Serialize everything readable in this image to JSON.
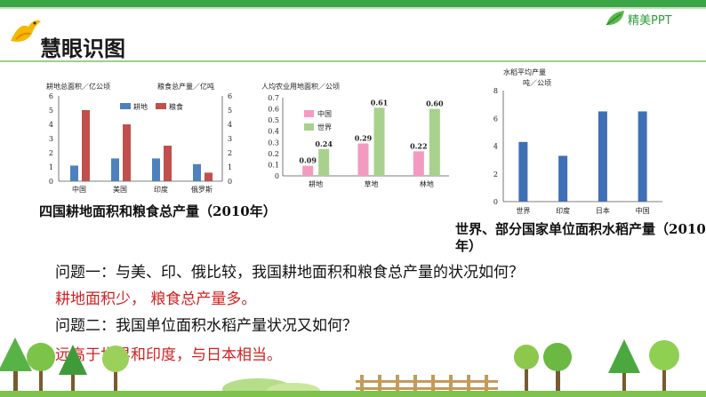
{
  "slide": {
    "title": "慧眼识图",
    "brand": "精美PPT"
  },
  "charts": {
    "chart1": {
      "type": "bar",
      "ylabel_left": "耕地总面积／亿公顷",
      "ylabel_right": "粮食总产量／亿吨",
      "categories": [
        "中国",
        "美国",
        "印度",
        "俄罗斯"
      ],
      "yticks": [
        "0",
        "1",
        "2",
        "3",
        "4",
        "5",
        "6"
      ],
      "ylim": [
        0,
        6
      ],
      "series": [
        {
          "name": "耕地",
          "color": "#4f81bd",
          "values": [
            1.1,
            1.6,
            1.6,
            1.2
          ]
        },
        {
          "name": "粮食",
          "color": "#c0504d",
          "values": [
            5.0,
            4.0,
            2.5,
            0.6
          ]
        }
      ],
      "caption": "四国耕地面积和粮食总产量（2010年）"
    },
    "chart2": {
      "type": "bar",
      "ylabel": "人均农业用地面积／公顷",
      "categories": [
        "耕地",
        "草地",
        "林地"
      ],
      "yticks": [
        "0",
        "0.1",
        "0.2",
        "0.3",
        "0.4",
        "0.5",
        "0.6",
        "0.7"
      ],
      "ylim": [
        0,
        0.7
      ],
      "series": [
        {
          "name": "中国",
          "color": "#f49ac1",
          "values": [
            0.09,
            0.29,
            0.22
          ],
          "labels": [
            "0.09",
            "0.29",
            "0.22"
          ]
        },
        {
          "name": "世界",
          "color": "#a9d18e",
          "values": [
            0.24,
            0.61,
            0.6
          ],
          "labels": [
            "0.24",
            "0.61",
            "0.60"
          ]
        }
      ]
    },
    "chart3": {
      "type": "bar",
      "ylabel_line1": "水稻平均产量",
      "ylabel_line2": "吨／公顷",
      "categories": [
        "世界",
        "印度",
        "日本",
        "中国"
      ],
      "yticks": [
        "0",
        "2",
        "4",
        "6",
        "8"
      ],
      "ylim": [
        0,
        8
      ],
      "series": [
        {
          "name": "水稻平均产量",
          "color": "#3f6fb5",
          "values": [
            4.3,
            3.3,
            6.5,
            6.5
          ]
        }
      ],
      "caption": "世界、部分国家单位面积水稻产量（2010年）"
    }
  },
  "questions": {
    "q1": "问题一：与美、印、俄比较，我国耕地面积和粮食总产量的状况如何？",
    "a1": "耕地面积少，  粮食总产量多。",
    "q2": "问题二：我国单位面积水稻产量状况又如何？",
    "a2": "远高于世界和印度，与日本相当。"
  }
}
